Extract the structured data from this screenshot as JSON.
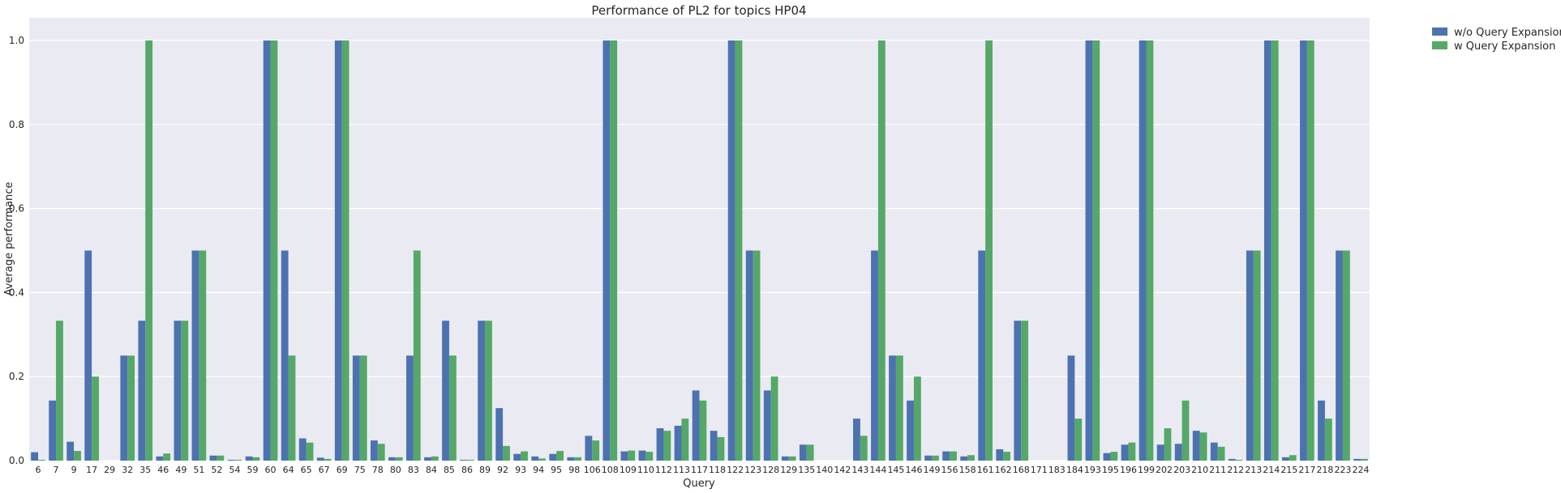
{
  "chart_data": {
    "type": "bar",
    "title": "Performance of PL2 for topics HP04",
    "xlabel": "Query",
    "ylabel": "Average performance",
    "ylim": [
      0,
      1.05
    ],
    "yticks": [
      "0.0",
      "0.2",
      "0.4",
      "0.6",
      "0.8",
      "1.0"
    ],
    "grid": true,
    "legend_position": "top-right, outside plot",
    "categories": [
      "6",
      "7",
      "9",
      "17",
      "29",
      "32",
      "35",
      "46",
      "49",
      "51",
      "52",
      "54",
      "59",
      "60",
      "64",
      "65",
      "67",
      "69",
      "75",
      "78",
      "80",
      "83",
      "84",
      "85",
      "86",
      "89",
      "92",
      "93",
      "94",
      "95",
      "98",
      "106",
      "108",
      "109",
      "110",
      "112",
      "113",
      "117",
      "118",
      "122",
      "123",
      "128",
      "129",
      "135",
      "140",
      "142",
      "143",
      "144",
      "145",
      "146",
      "149",
      "156",
      "158",
      "161",
      "162",
      "168",
      "171",
      "183",
      "184",
      "193",
      "195",
      "196",
      "199",
      "202",
      "203",
      "210",
      "211",
      "212",
      "213",
      "214",
      "215",
      "217",
      "218",
      "223",
      "224"
    ],
    "series": [
      {
        "name": "w/o Query Expansion",
        "color": "#4C72B0",
        "values": [
          0.02,
          0.143,
          0.045,
          0.5,
          0,
          0.25,
          0.333,
          0.01,
          0.333,
          0.5,
          0.012,
          0.002,
          0.01,
          1.0,
          0.5,
          0.053,
          0.007,
          1.0,
          0.25,
          0.048,
          0.008,
          0.25,
          0.008,
          0.333,
          0.002,
          0.333,
          0.125,
          0.016,
          0.01,
          0.016,
          0.008,
          0.059,
          1.0,
          0.022,
          0.024,
          0.077,
          0.083,
          0.167,
          0.071,
          1.0,
          0.5,
          0.167,
          0.01,
          0.038,
          0,
          0,
          0.1,
          0.5,
          0.25,
          0.143,
          0.012,
          0.022,
          0.01,
          0.5,
          0.027,
          0.333,
          0,
          0,
          0.25,
          1.0,
          0.018,
          0.038,
          1.0,
          0.038,
          0.04,
          0.071,
          0.043,
          0.004,
          0.5,
          1.0,
          0.008,
          1.0,
          0.143,
          0.5,
          0.004
        ]
      },
      {
        "name": "w Query Expansion",
        "color": "#55A868",
        "values": [
          0.002,
          0.333,
          0.023,
          0.2,
          0,
          0.25,
          1.0,
          0.017,
          0.333,
          0.5,
          0.012,
          0.002,
          0.008,
          1.0,
          0.25,
          0.043,
          0.004,
          1.0,
          0.25,
          0.04,
          0.008,
          0.5,
          0.01,
          0.25,
          0.002,
          0.333,
          0.035,
          0.022,
          0.005,
          0.023,
          0.008,
          0.048,
          1.0,
          0.024,
          0.021,
          0.071,
          0.1,
          0.143,
          0.056,
          1.0,
          0.5,
          0.2,
          0.01,
          0.038,
          0,
          0,
          0.059,
          1.0,
          0.25,
          0.2,
          0.012,
          0.022,
          0.013,
          1.0,
          0.021,
          0.333,
          0,
          0,
          0.1,
          1.0,
          0.021,
          0.043,
          1.0,
          0.077,
          0.143,
          0.067,
          0.033,
          0.002,
          0.5,
          1.0,
          0.013,
          1.0,
          0.1,
          0.5,
          0.004
        ]
      }
    ]
  }
}
